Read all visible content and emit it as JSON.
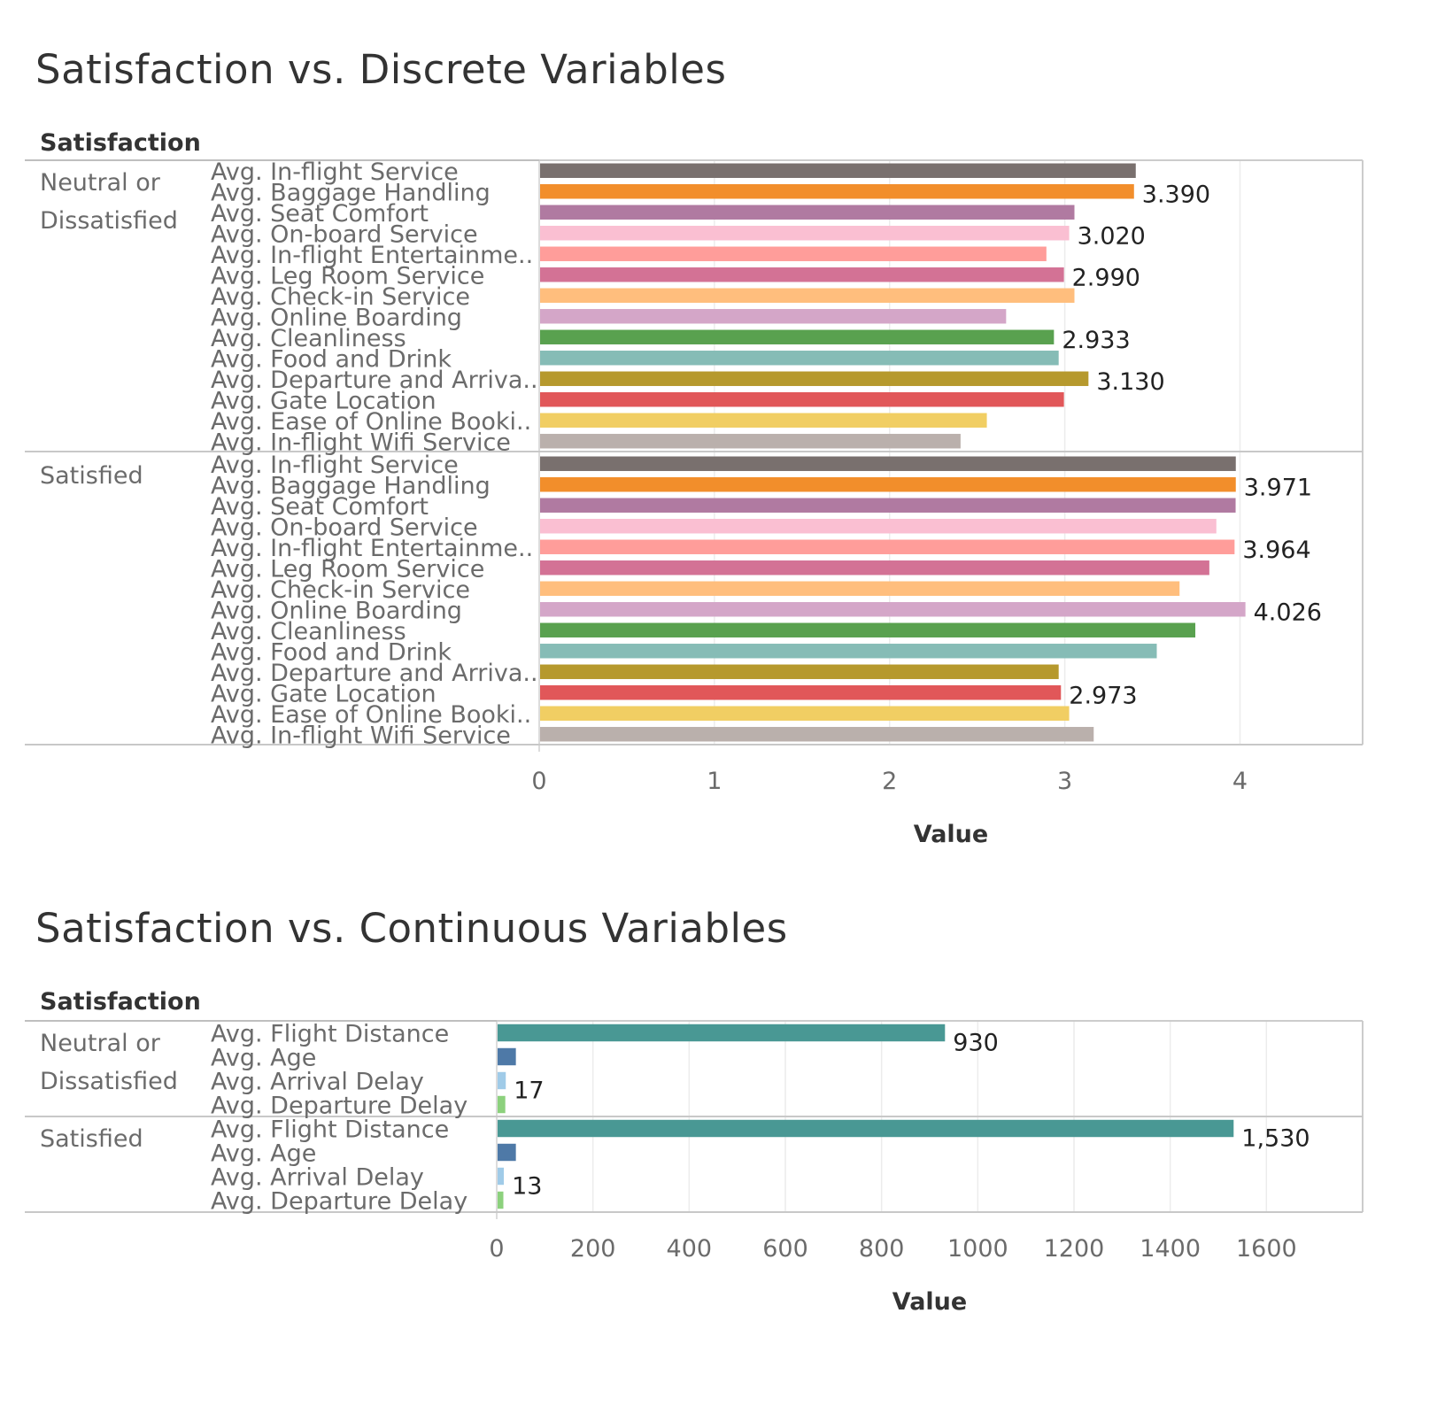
{
  "chart_data": [
    {
      "type": "bar",
      "title": "Satisfaction vs. Discrete Variables",
      "header": "Satisfaction",
      "xlabel": "Value",
      "xlim": [
        0,
        4.7
      ],
      "xticks": [
        0,
        1,
        2,
        3,
        4
      ],
      "tick_labels": [
        "0",
        "1",
        "2",
        "3",
        "4"
      ],
      "grid": true,
      "categories": [
        "Avg. In-flight Service",
        "Avg. Baggage Handling",
        "Avg. Seat Comfort",
        "Avg. On-board Service",
        "Avg. In-flight Entertainme..",
        "Avg. Leg Room Service",
        "Avg. Check-in Service",
        "Avg. Online Boarding",
        "Avg. Cleanliness",
        "Avg. Food and Drink",
        "Avg. Departure and Arriva..",
        "Avg. Gate Location",
        "Avg. Ease of Online Booki..",
        "Avg. In-flight Wifi Service"
      ],
      "colors": [
        "#79706e",
        "#f28e2b",
        "#b07aa1",
        "#fabfd2",
        "#ff9d9a",
        "#d37295",
        "#ffbe7d",
        "#d4a6c8",
        "#59a14f",
        "#86bcb6",
        "#b6992d",
        "#e15759",
        "#f1ce63",
        "#bab0ac"
      ],
      "groups": [
        {
          "name_lines": [
            "Neutral or",
            "Dissatisfied"
          ],
          "values": [
            3.4,
            3.39,
            3.05,
            3.02,
            2.89,
            2.99,
            3.05,
            2.66,
            2.933,
            2.96,
            3.13,
            2.99,
            2.55,
            2.4
          ],
          "data_labels": [
            "",
            "3.390",
            "",
            "3.020",
            "",
            "2.990",
            "",
            "",
            "2.933",
            "",
            "3.130",
            "",
            "",
            ""
          ]
        },
        {
          "name_lines": [
            "Satisfied"
          ],
          "values": [
            3.971,
            3.971,
            3.97,
            3.86,
            3.964,
            3.82,
            3.65,
            4.026,
            3.74,
            3.52,
            2.96,
            2.973,
            3.02,
            3.16
          ],
          "data_labels": [
            "",
            "3.971",
            "",
            "",
            "3.964",
            "",
            "",
            "4.026",
            "",
            "",
            "",
            "2.973",
            "",
            ""
          ]
        }
      ]
    },
    {
      "type": "bar",
      "title": "Satisfaction vs. Continuous Variables",
      "header": "Satisfaction",
      "xlabel": "Value",
      "xlim": [
        0,
        1800
      ],
      "xticks": [
        0,
        200,
        400,
        600,
        800,
        1000,
        1200,
        1400,
        1600
      ],
      "tick_labels": [
        "0",
        "200",
        "400",
        "600",
        "800",
        "1000",
        "1200",
        "1400",
        "1600"
      ],
      "grid": true,
      "categories": [
        "Avg. Flight Distance",
        "Avg. Age",
        "Avg. Arrival Delay",
        "Avg. Departure Delay"
      ],
      "colors": [
        "#499894",
        "#4e79a7",
        "#a0cbe8",
        "#8cd17d"
      ],
      "groups": [
        {
          "name_lines": [
            "Neutral or",
            "Dissatisfied"
          ],
          "values": [
            930,
            38,
            17,
            16
          ],
          "data_labels": [
            "930",
            "",
            "17",
            ""
          ]
        },
        {
          "name_lines": [
            "Satisfied"
          ],
          "values": [
            1530,
            38,
            13,
            12
          ],
          "data_labels": [
            "1,530",
            "",
            "13",
            ""
          ]
        }
      ]
    }
  ]
}
